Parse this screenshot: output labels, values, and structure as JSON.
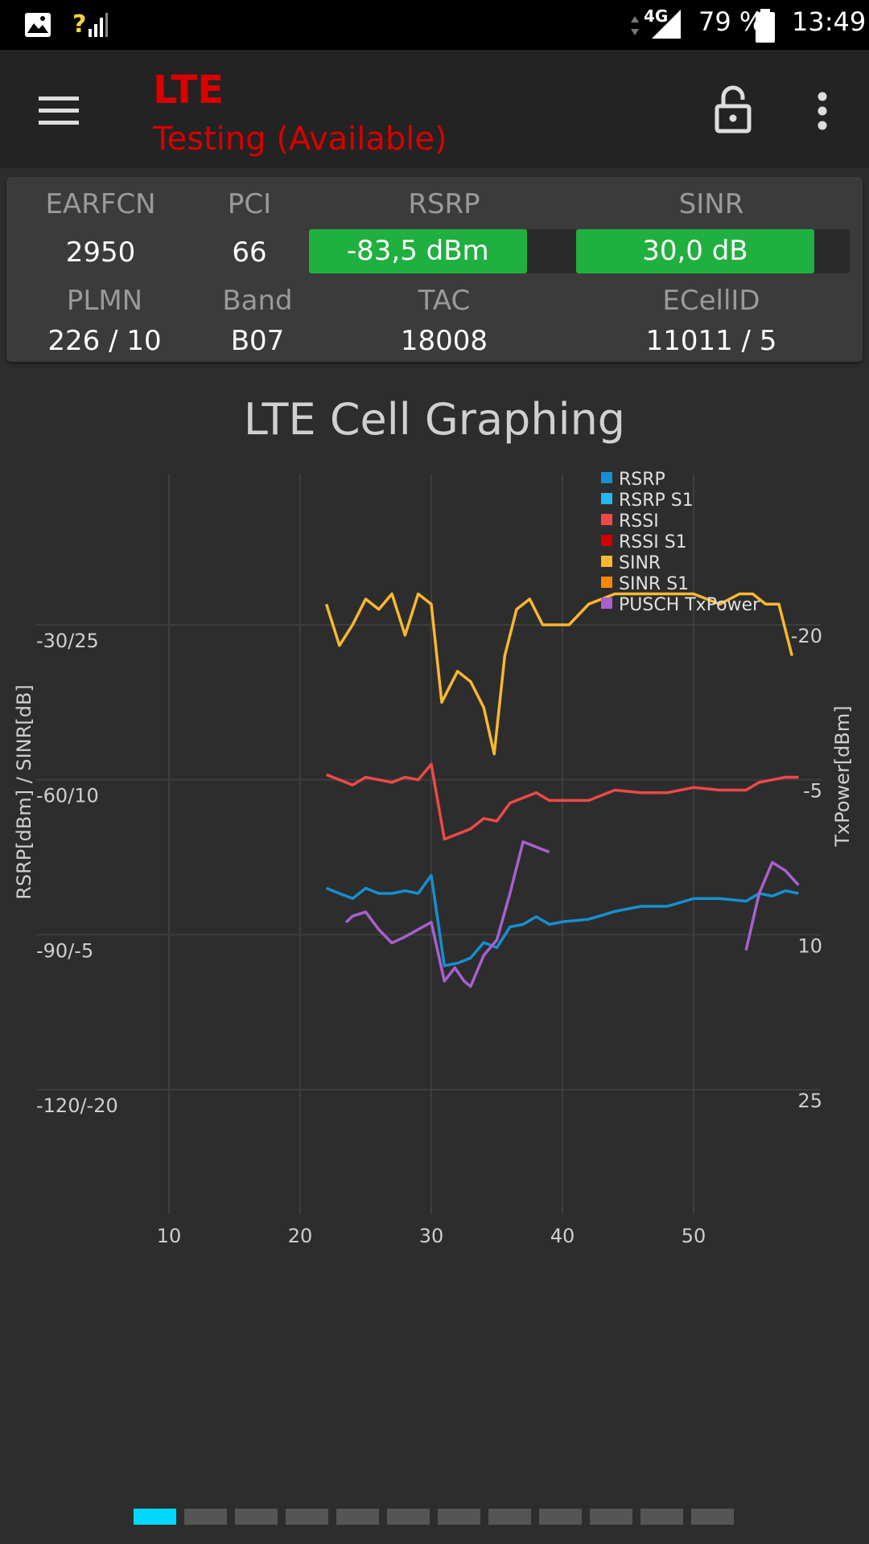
{
  "statusbar": {
    "network": "4G",
    "battery": "79 %",
    "time": "13:49"
  },
  "appbar": {
    "title": "LTE",
    "subtitle": "Testing (Available)",
    "menu_icon": "menu-icon",
    "lock_icon": "lock-open-icon",
    "overflow_icon": "more-vert-icon"
  },
  "cell": {
    "earfcn_label": "EARFCN",
    "earfcn": "2950",
    "pci_label": "PCI",
    "pci": "66",
    "rsrp_label": "RSRP",
    "rsrp": "-83,5 dBm",
    "rsrp_level": 0.81,
    "sinr_label": "SINR",
    "sinr": "30,0 dB",
    "sinr_level": 0.87,
    "plmn_label": "PLMN",
    "plmn": "226 / 10",
    "band_label": "Band",
    "band": "B07",
    "tac_label": "TAC",
    "tac": "18008",
    "ecellid_label": "ECellID",
    "ecellid": "11011 / 5"
  },
  "chart_title": "LTE Cell Graphing",
  "chart_data": {
    "type": "line",
    "title": "LTE Cell Graphing",
    "xlabel": "",
    "ylabel": "RSRP[dBm] / SINR[dB]",
    "y2label": "TxPower[dBm]",
    "xlim": [
      0,
      60
    ],
    "xticks": [
      "10",
      "20",
      "30",
      "40",
      "50"
    ],
    "xtick_values": [
      10,
      20,
      30,
      40,
      50
    ],
    "ylim_rsrp": [
      -150,
      0
    ],
    "yticks_left": [
      "-30/25",
      "-60/10",
      "-90/-5",
      "-120/-20"
    ],
    "ytick_left_values": [
      -30,
      -60,
      -90,
      -120
    ],
    "y2ticks": [
      "-20",
      "-5",
      "10",
      "25"
    ],
    "y2tick_values": [
      -20,
      -5,
      10,
      25
    ],
    "grid": true,
    "legend_position": "top-right",
    "legend": [
      {
        "name": "RSRP",
        "color": "#1590d0"
      },
      {
        "name": "RSRP S1",
        "color": "#22b8f0"
      },
      {
        "name": "RSSI",
        "color": "#f04848"
      },
      {
        "name": "RSSI S1",
        "color": "#d00000"
      },
      {
        "name": "SINR",
        "color": "#f8b830"
      },
      {
        "name": "SINR S1",
        "color": "#f88800"
      },
      {
        "name": "PUSCH TxPower",
        "color": "#a860d0"
      }
    ],
    "series": [
      {
        "name": "RSRP",
        "color": "#1590d0",
        "axis": "left",
        "x": [
          22,
          23,
          24,
          25,
          26,
          27,
          28,
          29,
          30,
          31,
          32,
          33,
          34,
          35,
          36,
          37,
          38,
          39,
          40,
          42,
          44,
          46,
          48,
          50,
          52,
          54,
          55,
          56,
          57,
          58
        ],
        "y": [
          -81,
          -82,
          -83,
          -81,
          -82,
          -82,
          -81.5,
          -82,
          -78.5,
          -96,
          -95.5,
          -94.5,
          -91.5,
          -92.5,
          -88.5,
          -88,
          -86.5,
          -88,
          -87.5,
          -87,
          -85.5,
          -84.5,
          -84.5,
          -83,
          -83,
          -83.5,
          -82,
          -82.5,
          -81.5,
          -82
        ]
      },
      {
        "name": "RSSI",
        "color": "#f04848",
        "axis": "left",
        "x": [
          22,
          23,
          24,
          25,
          26,
          27,
          28,
          29,
          30,
          31,
          32,
          33,
          34,
          35,
          36,
          37,
          38,
          39,
          40,
          42,
          44,
          46,
          48,
          50,
          52,
          54,
          55,
          56,
          57,
          58
        ],
        "y": [
          -59,
          -60,
          -61,
          -59.5,
          -60,
          -60.5,
          -59.5,
          -60,
          -57,
          -71.5,
          -70.5,
          -69.5,
          -67.5,
          -68,
          -64.5,
          -63.5,
          -62.5,
          -64,
          -64,
          -64,
          -62,
          -62.5,
          -62.5,
          -61.5,
          -62,
          -62,
          -60.5,
          -60,
          -59.5,
          -59.5
        ]
      },
      {
        "name": "SINR",
        "color": "#f8b830",
        "axis": "left",
        "x": [
          22,
          23,
          24,
          25,
          26,
          27,
          28,
          29,
          30,
          30.8,
          32,
          33,
          34,
          34.8,
          35.6,
          36.5,
          37.5,
          38.5,
          39.5,
          40.5,
          42,
          44,
          46,
          48,
          50,
          52,
          53.5,
          54.5,
          55.5,
          56.5,
          57.5
        ],
        "y": [
          27,
          23,
          25,
          27.5,
          26.5,
          28,
          24,
          28,
          27,
          17.5,
          20.5,
          19.5,
          17,
          12.5,
          22,
          26.5,
          27.5,
          25,
          25,
          25,
          27,
          28,
          28,
          28,
          28,
          27,
          28,
          28,
          27,
          27,
          22
        ]
      },
      {
        "name": "PUSCH TxPower",
        "color": "#a860d0",
        "axis": "right",
        "segments": [
          {
            "x": [
              23.5,
              24,
              25,
              26,
              27,
              28,
              29,
              30,
              31,
              31.8,
              32.5,
              33,
              34,
              35,
              36,
              37,
              38,
              39
            ],
            "y": [
              8.8,
              8.2,
              7.8,
              9.5,
              10.8,
              10.2,
              9.5,
              8.8,
              14.5,
              13.2,
              14.5,
              15,
              12,
              10.5,
              6,
              1,
              1.5,
              2
            ]
          },
          {
            "x": [
              54,
              55,
              56,
              57,
              58
            ],
            "y": [
              11.5,
              6,
              3,
              3.8,
              5.2
            ]
          }
        ]
      }
    ]
  }
}
